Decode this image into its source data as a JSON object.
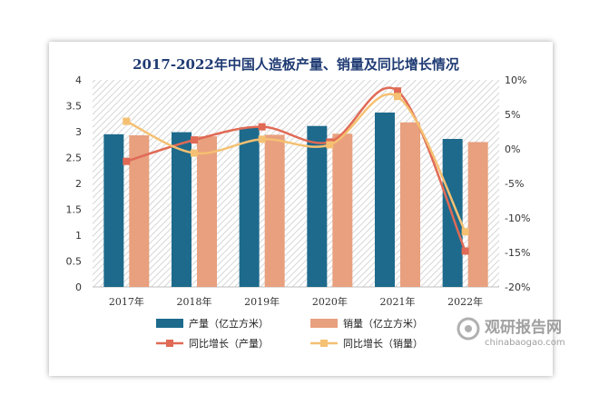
{
  "chart_data": {
    "type": "bar",
    "title": "2017-2022年中国人造板产量、销量及同比增长情况",
    "categories": [
      "2017年",
      "2018年",
      "2019年",
      "2020年",
      "2021年",
      "2022年"
    ],
    "series": [
      {
        "name": "产量（亿立方米）",
        "type": "bar",
        "axis": "left",
        "color": "#1d6a8c",
        "values": [
          2.95,
          2.99,
          3.08,
          3.11,
          3.37,
          2.86
        ]
      },
      {
        "name": "销量（亿立方米）",
        "type": "bar",
        "axis": "left",
        "color": "#e8a07e",
        "values": [
          2.93,
          2.91,
          2.94,
          2.96,
          3.18,
          2.8
        ]
      },
      {
        "name": "同比增长（产量）",
        "type": "line",
        "axis": "right",
        "color": "#e06a55",
        "marker": "square",
        "values": [
          -1.8,
          1.3,
          3.2,
          1.0,
          8.4,
          -14.8
        ]
      },
      {
        "name": "同比增长（销量）",
        "type": "line",
        "axis": "right",
        "color": "#f5c072",
        "marker": "square",
        "values": [
          4.0,
          -0.6,
          1.4,
          0.6,
          7.6,
          -12.0
        ]
      }
    ],
    "y_left": {
      "min": 0,
      "max": 4,
      "ticks": [
        "0",
        "0.5",
        "1",
        "1.5",
        "2",
        "2.5",
        "3",
        "3.5",
        "4"
      ]
    },
    "y_right": {
      "min": -20,
      "max": 10,
      "ticks": [
        "-20%",
        "-15%",
        "-10%",
        "-5%",
        "0%",
        "5%",
        "10%"
      ]
    },
    "legend": "bottom"
  },
  "watermark": {
    "main": "观研报告网",
    "sub": "chinabaogao.com"
  }
}
